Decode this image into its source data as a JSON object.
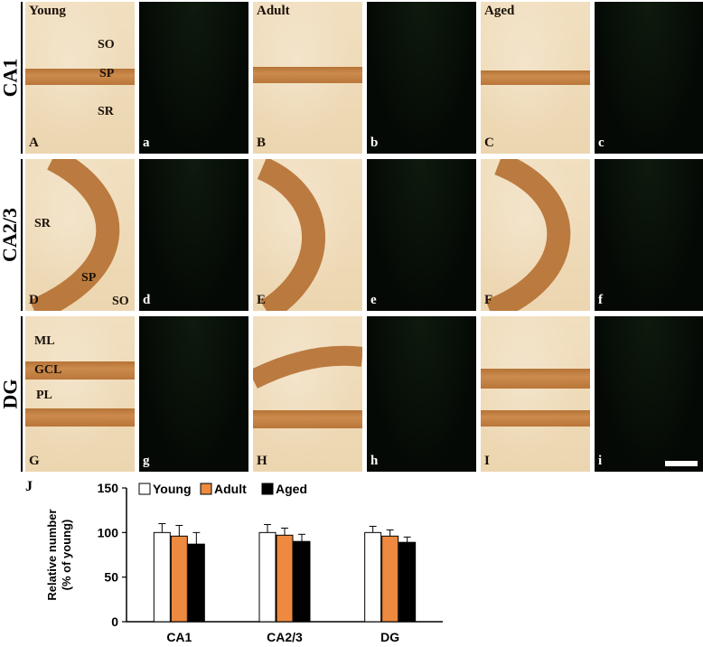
{
  "rows": [
    {
      "label": "CA1"
    },
    {
      "label": "CA2/3"
    },
    {
      "label": "DG"
    }
  ],
  "panel_titles": [
    "Young",
    "Adult",
    "Aged"
  ],
  "row1": {
    "ihc_letters": [
      "A",
      "B",
      "C"
    ],
    "fl_letters": [
      "a",
      "b",
      "c"
    ],
    "regions": [
      "SO",
      "SP",
      "SR"
    ]
  },
  "row2": {
    "ihc_letters": [
      "D",
      "E",
      "F"
    ],
    "fl_letters": [
      "d",
      "e",
      "f"
    ],
    "regions": [
      "SR",
      "SP",
      "SO"
    ]
  },
  "row3": {
    "ihc_letters": [
      "G",
      "H",
      "I"
    ],
    "fl_letters": [
      "g",
      "h",
      "i"
    ],
    "regions": [
      "ML",
      "GCL",
      "PL"
    ]
  },
  "chart_panel_letter": "J",
  "chart_data": {
    "type": "bar",
    "categories": [
      "CA1",
      "CA2/3",
      "DG"
    ],
    "series": [
      {
        "name": "Young",
        "color": "#ffffff",
        "values": [
          100,
          100,
          100
        ],
        "errors": [
          10,
          9,
          7
        ]
      },
      {
        "name": "Adult",
        "color": "#ed8a3f",
        "values": [
          96,
          97,
          96
        ],
        "errors": [
          12,
          8,
          7
        ]
      },
      {
        "name": "Aged",
        "color": "#000000",
        "values": [
          87,
          90,
          89
        ],
        "errors": [
          13,
          8,
          6
        ]
      }
    ],
    "ylabel": "Relative number\n(% of young)",
    "ylabel_lines": [
      "Relative number",
      "(% of young)"
    ],
    "ylim": [
      0,
      150
    ],
    "yticks": [
      "0",
      "50",
      "100",
      "150"
    ],
    "legend": "top"
  }
}
